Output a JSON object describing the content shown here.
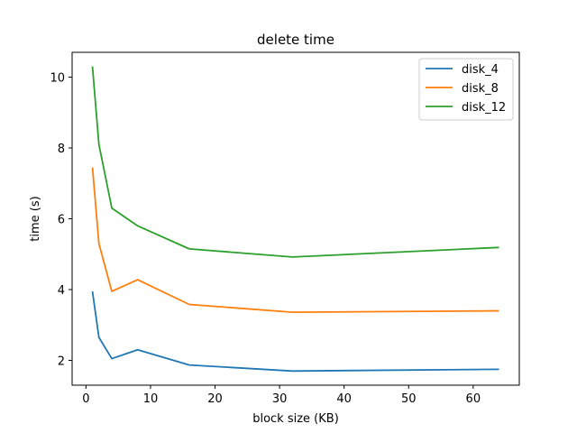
{
  "chart_data": {
    "type": "line",
    "title": "delete time",
    "xlabel": "block size (KB)",
    "ylabel": "time (s)",
    "x": [
      1,
      2,
      4,
      8,
      16,
      32,
      64
    ],
    "xlim": [
      -2.15,
      67.15
    ],
    "ylim": [
      1.3,
      10.7
    ],
    "xticks": [
      0,
      10,
      20,
      30,
      40,
      50,
      60
    ],
    "yticks": [
      2,
      4,
      6,
      8,
      10
    ],
    "grid": false,
    "legend_position": "top-right",
    "series": [
      {
        "name": "disk_4",
        "color": "#1f77b4",
        "values": [
          3.95,
          2.65,
          2.05,
          2.3,
          1.87,
          1.7,
          1.75
        ]
      },
      {
        "name": "disk_8",
        "color": "#ff7f0e",
        "values": [
          7.45,
          5.3,
          3.95,
          4.28,
          3.58,
          3.36,
          3.4
        ]
      },
      {
        "name": "disk_12",
        "color": "#2ca02c",
        "values": [
          10.3,
          8.1,
          6.3,
          5.8,
          5.15,
          4.92,
          5.19
        ]
      }
    ]
  }
}
